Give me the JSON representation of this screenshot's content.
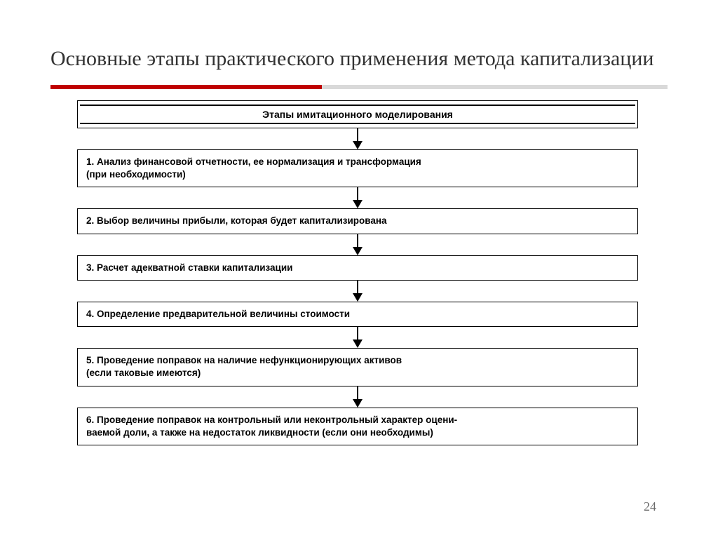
{
  "slide": {
    "title": "Основные этапы практического применения метода капитализации",
    "page_number": "24",
    "rule_color_primary": "#c00000",
    "rule_color_secondary": "#d9d9d9"
  },
  "flowchart": {
    "type": "flowchart",
    "direction": "vertical",
    "header": "Этапы имитационного моделирования",
    "box_border_color": "#000000",
    "box_background": "#ffffff",
    "arrow_color": "#000000",
    "font_weight": "bold",
    "steps": [
      {
        "label": "1. Анализ финансовой отчетности, ее нормализация и трансформация\n    (при необходимости)"
      },
      {
        "label": "2. Выбор величины прибыли, которая будет капитализирована"
      },
      {
        "label": "3. Расчет адекватной ставки капитализации"
      },
      {
        "label": "4. Определение предварительной величины стоимости"
      },
      {
        "label": "5. Проведение поправок на наличие нефункционирующих активов\n    (если таковые имеются)"
      },
      {
        "label": "6. Проведение поправок на контрольный или неконтрольный характер оцени-\n    ваемой доли, а также на недостаток ликвидности (если они необходимы)"
      }
    ]
  }
}
